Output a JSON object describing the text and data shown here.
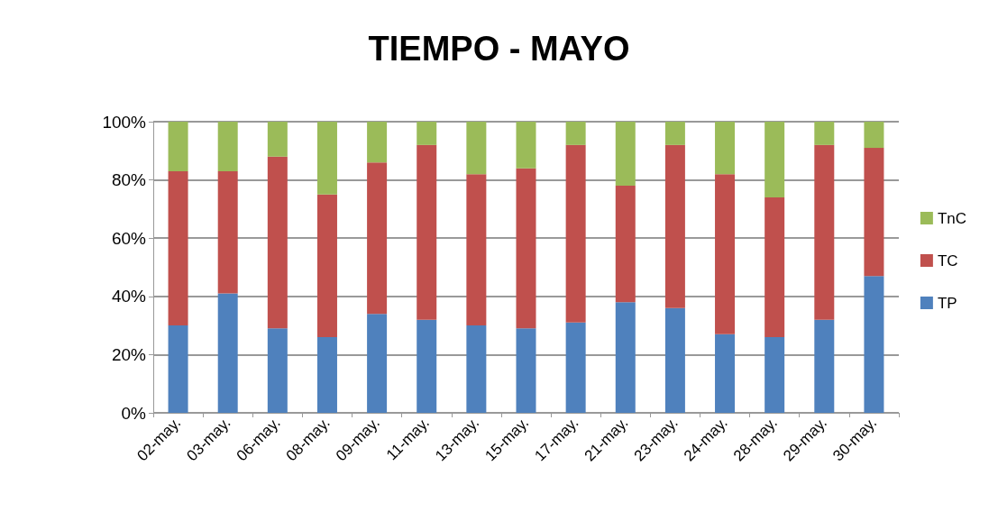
{
  "chart_data": {
    "type": "bar",
    "title": "TIEMPO - MAYO",
    "stacked": true,
    "categories": [
      "02-may.",
      "03-may.",
      "06-may.",
      "08-may.",
      "09-may.",
      "11-may.",
      "13-may.",
      "15-may.",
      "17-may.",
      "21-may.",
      "23-may.",
      "24-may.",
      "28-may.",
      "29-may.",
      "30-may."
    ],
    "series": [
      {
        "name": "TP",
        "color": "#4f81bd",
        "values": [
          30,
          41,
          29,
          26,
          34,
          32,
          30,
          29,
          31,
          38,
          36,
          27,
          26,
          32,
          47
        ]
      },
      {
        "name": "TC",
        "color": "#c0504d",
        "values": [
          53,
          42,
          59,
          49,
          52,
          60,
          52,
          55,
          61,
          40,
          56,
          55,
          48,
          60,
          44
        ]
      },
      {
        "name": "TnC",
        "color": "#9bbb59",
        "values": [
          17,
          17,
          12,
          25,
          14,
          8,
          18,
          16,
          8,
          22,
          8,
          18,
          26,
          8,
          9
        ]
      }
    ],
    "ylim": [
      0,
      100
    ],
    "yticks": [
      {
        "value": 0,
        "label": "0%"
      },
      {
        "value": 20,
        "label": "20%"
      },
      {
        "value": 40,
        "label": "40%"
      },
      {
        "value": 60,
        "label": "60%"
      },
      {
        "value": 80,
        "label": "80%"
      },
      {
        "value": 100,
        "label": "100%"
      }
    ],
    "grid": "y",
    "legend": "right"
  }
}
